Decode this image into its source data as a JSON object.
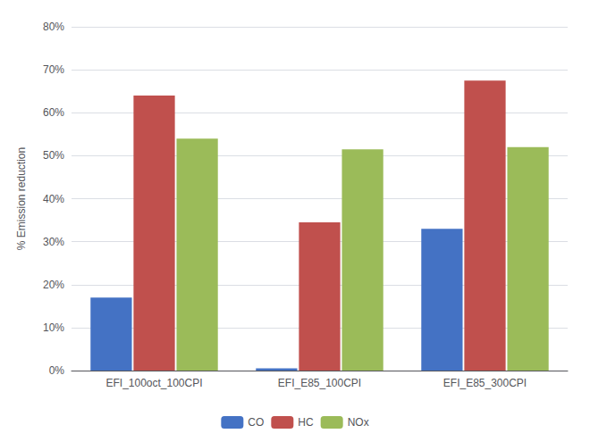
{
  "chart_data": {
    "type": "bar",
    "categories": [
      "EFI_100oct_100CPI",
      "EFI_E85_100CPI",
      "EFI_E85_300CPI"
    ],
    "series": [
      {
        "name": "CO",
        "color": "#4472c4",
        "values": [
          0.17,
          0.005,
          0.33
        ]
      },
      {
        "name": "HC",
        "color": "#c0504d",
        "values": [
          0.64,
          0.345,
          0.675
        ]
      },
      {
        "name": "NOx",
        "color": "#9bbb59",
        "values": [
          0.54,
          0.515,
          0.52
        ]
      }
    ],
    "ylabel": "% Emission reduction",
    "ylim": [
      0.0,
      0.8
    ],
    "yticks": [
      {
        "value": 0.0,
        "label": "0%"
      },
      {
        "value": 0.1,
        "label": "10%"
      },
      {
        "value": 0.2,
        "label": "20%"
      },
      {
        "value": 0.3,
        "label": "30%"
      },
      {
        "value": 0.4,
        "label": "40%"
      },
      {
        "value": 0.5,
        "label": "50%"
      },
      {
        "value": 0.6,
        "label": "60%"
      },
      {
        "value": 0.7,
        "label": "70%"
      },
      {
        "value": 0.8,
        "label": "80%"
      }
    ],
    "grid": true,
    "legend": "bottom"
  }
}
